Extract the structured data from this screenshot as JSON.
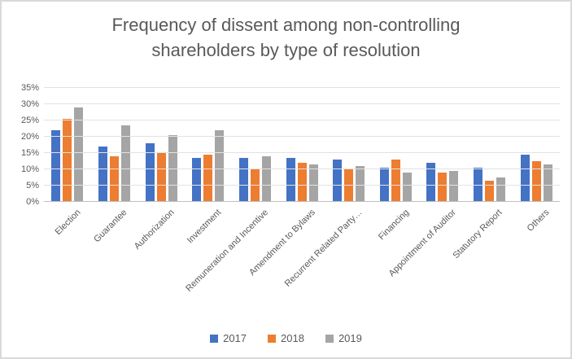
{
  "title": "Frequency of dissent among non-controlling shareholders by type of resolution",
  "colors": {
    "series_2017": "#4472C4",
    "series_2018": "#ED7D31",
    "series_2019": "#A5A5A5",
    "gridline": "#E2E2E2",
    "axis_line": "#BFBFBF",
    "text": "#595959",
    "frame_border": "#D9D9D9",
    "background": "#FFFFFF"
  },
  "chart_data": {
    "type": "bar",
    "title": "Frequency of dissent among non-controlling shareholders by type of resolution",
    "categories": [
      "Election",
      "Guarantee",
      "Authorization",
      "Investment",
      "Remuneration and Incentive",
      "Amendment to Bylaws",
      "Recurrent Related Party…",
      "Financing",
      "Appointment of Auditor",
      "Statutory Report",
      "Others"
    ],
    "series": [
      {
        "name": "2017",
        "color": "#4472C4",
        "values": [
          22,
          17,
          18,
          13.5,
          13.5,
          13.5,
          13,
          10.5,
          12,
          10.5,
          14.5
        ]
      },
      {
        "name": "2018",
        "color": "#ED7D31",
        "values": [
          25.5,
          14,
          15,
          14.5,
          10,
          12,
          10,
          13,
          9,
          6.5,
          12.5
        ]
      },
      {
        "name": "2019",
        "color": "#A5A5A5",
        "values": [
          29,
          23.5,
          20.5,
          22,
          14,
          11.5,
          11,
          9,
          9.5,
          7.5,
          11.5
        ]
      }
    ],
    "xlabel": "",
    "ylabel": "",
    "y_axis": {
      "min": 0,
      "max": 35,
      "step": 5,
      "tick_labels": [
        "0%",
        "5%",
        "10%",
        "15%",
        "20%",
        "25%",
        "30%",
        "35%"
      ]
    },
    "grid": true,
    "legend": [
      "2017",
      "2018",
      "2019"
    ],
    "legend_position": "bottom"
  }
}
